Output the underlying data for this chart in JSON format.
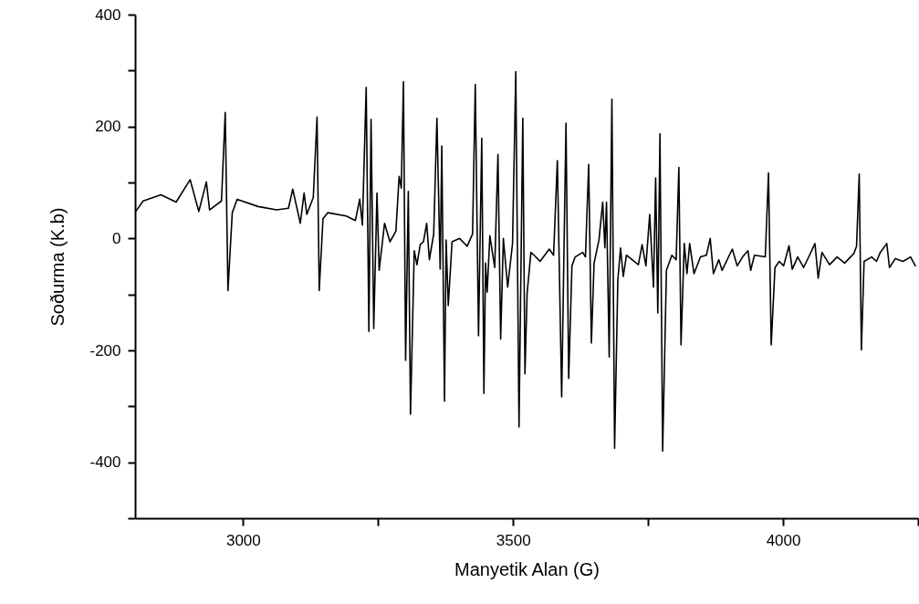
{
  "chart_data": {
    "type": "line",
    "xlabel": "Manyetik Alan (G)",
    "ylabel": "Soðurma (K.b)",
    "xlim": [
      2800,
      4250
    ],
    "xticks": [
      3000,
      {
        "value": 3250,
        "label": null
      },
      3500,
      {
        "value": 3750,
        "label": null
      },
      4000,
      {
        "value": 4250,
        "label": null
      }
    ],
    "ylim": [
      -500,
      400
    ],
    "yticks": [
      {
        "value": -500,
        "label": null
      },
      -400,
      {
        "value": -300,
        "label": null
      },
      -200,
      {
        "value": -100,
        "label": null
      },
      0,
      {
        "value": 100,
        "label": null
      },
      200,
      {
        "value": 300,
        "label": null
      },
      400
    ],
    "grid": false,
    "marker": "none",
    "line_style": "solid",
    "x": [
      2801,
      2815,
      2848,
      2876,
      2902,
      2918,
      2932,
      2938,
      2960,
      2967,
      2972,
      2980,
      2989,
      3028,
      3062,
      3084,
      3092,
      3106,
      3113,
      3118,
      3130,
      3137,
      3141,
      3148,
      3157,
      3191,
      3208,
      3216,
      3221,
      3228,
      3233,
      3237,
      3242,
      3248,
      3252,
      3262,
      3272,
      3283,
      3289,
      3293,
      3297,
      3301,
      3306,
      3310,
      3317,
      3322,
      3328,
      3334,
      3340,
      3345,
      3353,
      3359,
      3365,
      3368,
      3373,
      3376,
      3380,
      3387,
      3401,
      3415,
      3425,
      3430,
      3436,
      3442,
      3446,
      3449,
      3452,
      3457,
      3466,
      3472,
      3477,
      3482,
      3490,
      3499,
      3505,
      3511,
      3518,
      3522,
      3526,
      3533,
      3539,
      3550,
      3567,
      3575,
      3582,
      3590,
      3598,
      3603,
      3609,
      3615,
      3629,
      3634,
      3640,
      3645,
      3650,
      3659,
      3666,
      3670,
      3673,
      3678,
      3683,
      3688,
      3694,
      3699,
      3704,
      3710,
      3724,
      3732,
      3739,
      3746,
      3753,
      3760,
      3764,
      3768,
      3772,
      3777,
      3784,
      3794,
      3802,
      3807,
      3811,
      3817,
      3822,
      3827,
      3835,
      3847,
      3858,
      3865,
      3871,
      3881,
      3887,
      3906,
      3915,
      3925,
      3935,
      3940,
      3947,
      3967,
      3973,
      3978,
      3985,
      3993,
      4001,
      4011,
      4017,
      4027,
      4038,
      4049,
      4059,
      4065,
      4072,
      4086,
      4100,
      4114,
      4131,
      4136,
      4141,
      4145,
      4150,
      4164,
      4173,
      4180,
      4192,
      4197,
      4208,
      4222,
      4236,
      4245
    ],
    "series": [
      {
        "color": "#000000",
        "values": [
          48,
          67,
          78,
          65,
          105,
          48,
          101,
          51,
          67,
          225,
          -93,
          46,
          70,
          57,
          51,
          54,
          88,
          27,
          81,
          43,
          73,
          217,
          -93,
          35,
          46,
          40,
          32,
          70,
          24,
          270,
          -166,
          213,
          -161,
          81,
          -57,
          27,
          -6,
          13,
          111,
          90,
          280,
          -218,
          84,
          -314,
          -22,
          -47,
          -11,
          -6,
          27,
          -38,
          8,
          215,
          -55,
          165,
          -291,
          -3,
          -120,
          -6,
          0,
          -14,
          8,
          275,
          -174,
          179,
          -277,
          -44,
          -96,
          5,
          -52,
          150,
          -180,
          0,
          -87,
          -9,
          298,
          -337,
          215,
          -242,
          -98,
          -25,
          -30,
          -41,
          -19,
          -30,
          139,
          -283,
          206,
          -250,
          -49,
          -33,
          -25,
          -33,
          132,
          -187,
          -44,
          -3,
          65,
          -17,
          65,
          -212,
          249,
          -375,
          -74,
          -17,
          -68,
          -30,
          -41,
          -47,
          -11,
          -49,
          43,
          -87,
          108,
          -133,
          187,
          -380,
          -57,
          -30,
          -38,
          127,
          -190,
          -9,
          -63,
          -9,
          -63,
          -33,
          -30,
          0,
          -63,
          -38,
          -57,
          -19,
          -49,
          -33,
          -22,
          -57,
          -30,
          -33,
          117,
          -190,
          -52,
          -41,
          -49,
          -13,
          -55,
          -33,
          -52,
          -30,
          -9,
          -71,
          -25,
          -47,
          -33,
          -44,
          -27,
          -14,
          115,
          -199,
          -41,
          -33,
          -41,
          -25,
          -9,
          -52,
          -36,
          -41,
          -33,
          -49
        ]
      }
    ]
  }
}
